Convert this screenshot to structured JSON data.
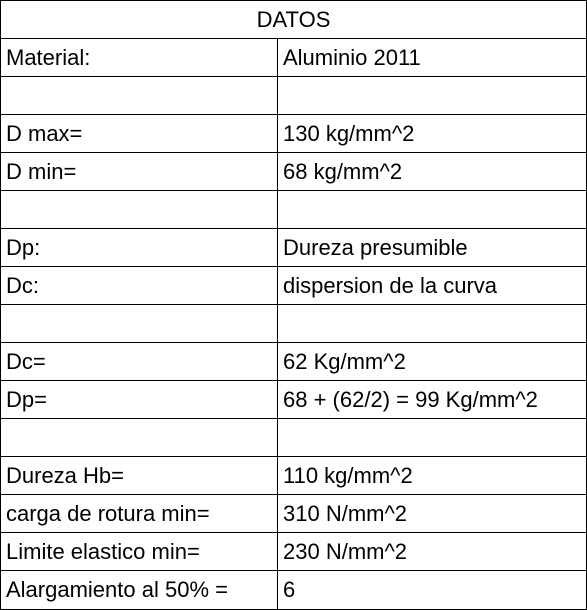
{
  "title": "DATOS",
  "rows": [
    {
      "label": "Material:",
      "value": "Aluminio 2011"
    },
    {
      "label": "",
      "value": ""
    },
    {
      "label": "D max=",
      "value": "130 kg/mm^2"
    },
    {
      "label": "D min=",
      "value": "68 kg/mm^2"
    },
    {
      "label": "",
      "value": ""
    },
    {
      "label": "Dp:",
      "value": "Dureza presumible"
    },
    {
      "label": "Dc:",
      "value": "dispersion de la curva"
    },
    {
      "label": "",
      "value": ""
    },
    {
      "label": "Dc=",
      "value": "62 Kg/mm^2"
    },
    {
      "label": "Dp=",
      "value": "68 + (62/2) = 99 Kg/mm^2"
    },
    {
      "label": "",
      "value": ""
    },
    {
      "label": "Dureza Hb=",
      "value": "110 kg/mm^2"
    },
    {
      "label": "carga de rotura min=",
      "value": "310 N/mm^2"
    },
    {
      "label": "Limite elastico min=",
      "value": "230 N/mm^2"
    },
    {
      "label": "Alargamiento al 50% =",
      "value": "6"
    }
  ]
}
